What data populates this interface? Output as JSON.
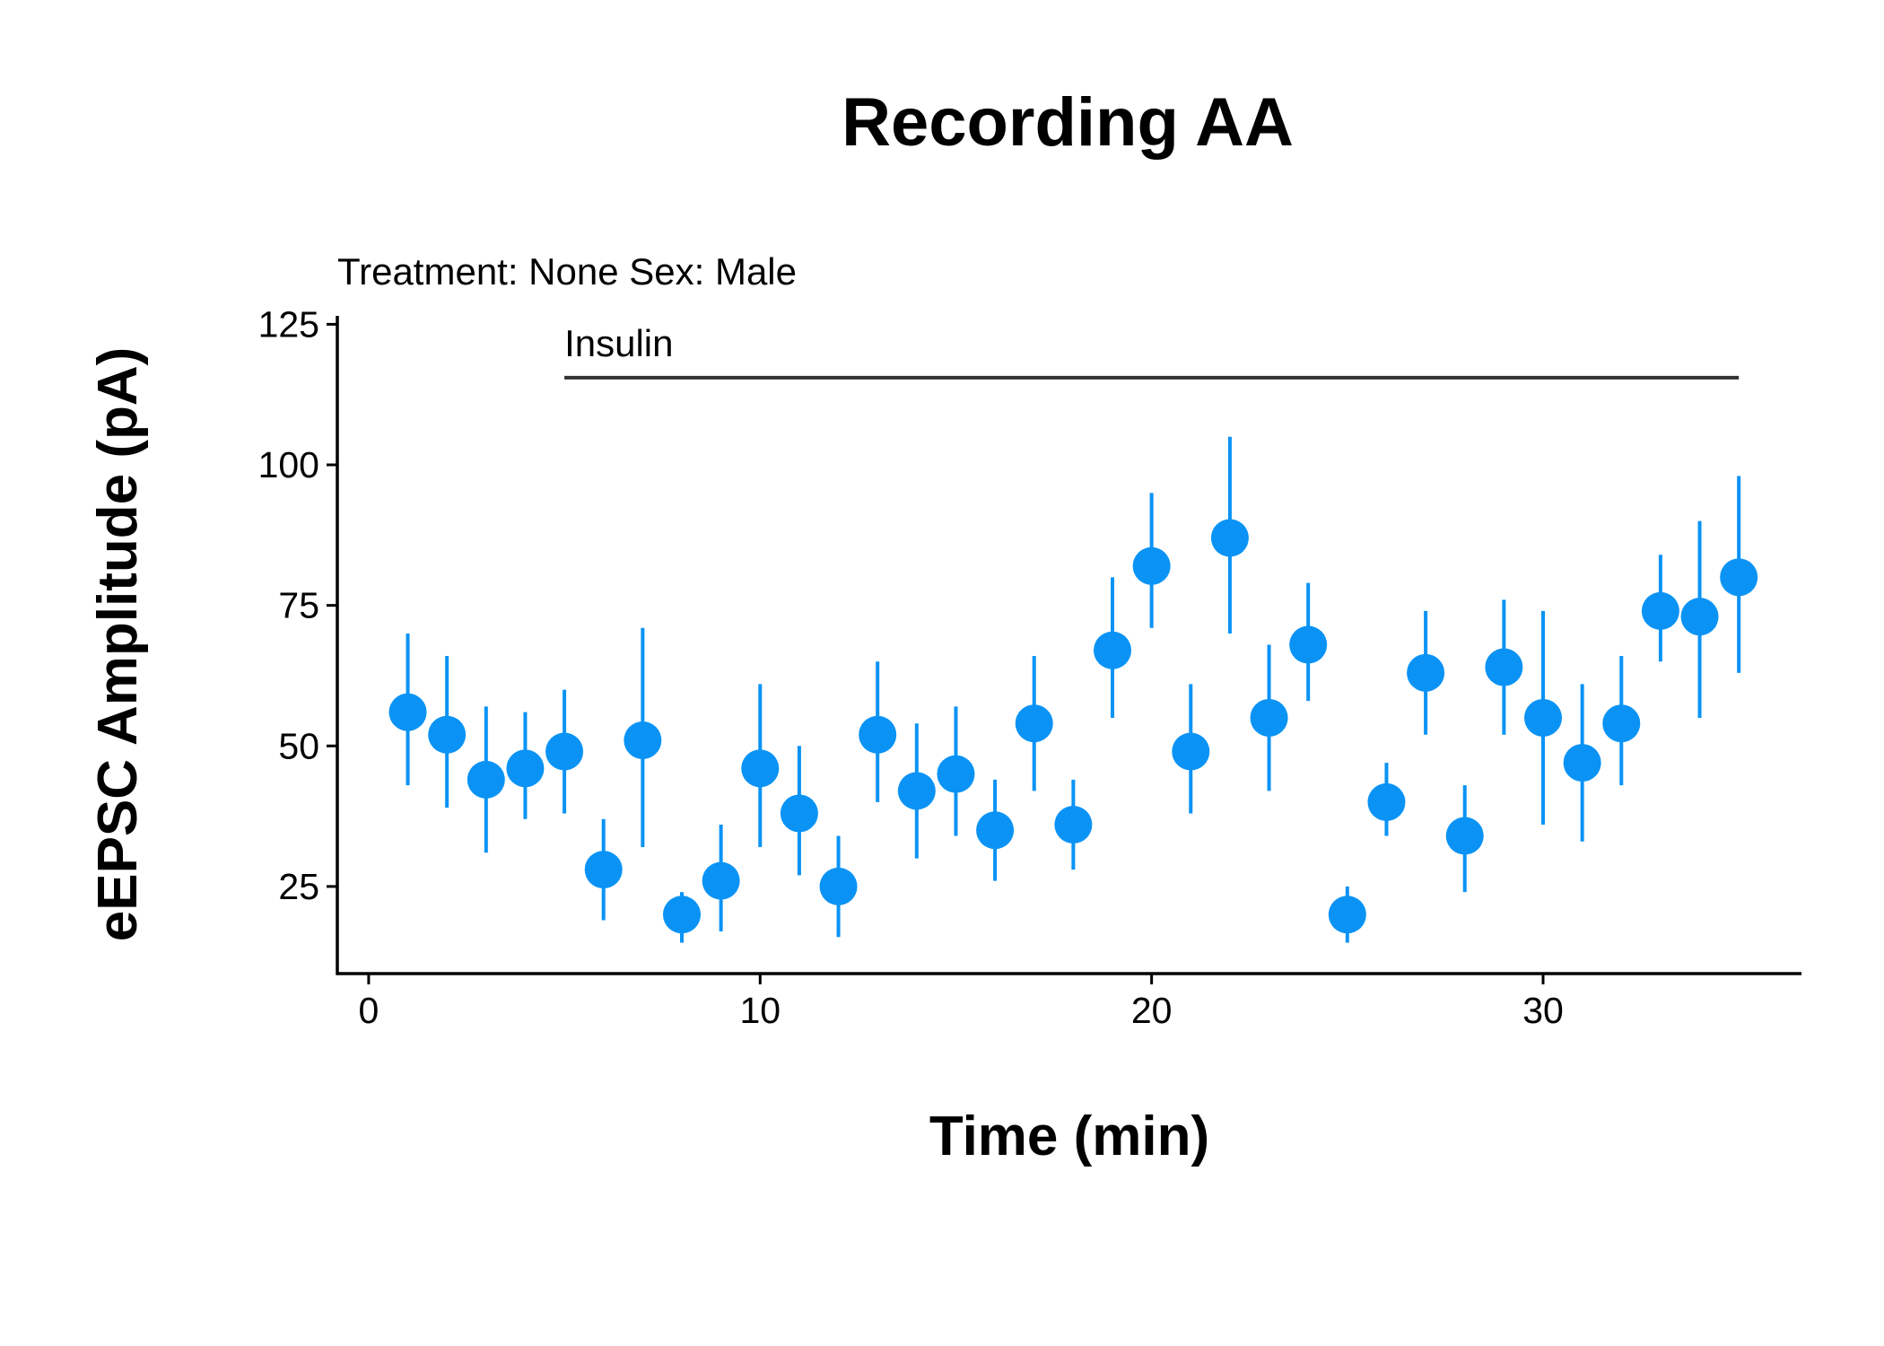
{
  "chart_data": {
    "type": "scatter",
    "title": "Recording AA",
    "subtitle": "Treatment: None  Sex: Male",
    "xlabel": "Time (min)",
    "ylabel": "eEPSC Amplitude (pA)",
    "xlim": [
      -0.8,
      36.6
    ],
    "ylim": [
      9.5,
      126.5
    ],
    "xticks": [
      0,
      10,
      20,
      30
    ],
    "yticks": [
      25,
      50,
      75,
      100,
      125
    ],
    "grid": false,
    "point_color": "#0A93F5",
    "annotation": {
      "label": "Insulin",
      "x_start": 5,
      "x_end": 35,
      "y": 115.5,
      "color": "#333333"
    },
    "series": [
      {
        "x": [
          1,
          2,
          3,
          4,
          5,
          6,
          7,
          8,
          9,
          10,
          11,
          12,
          13,
          14,
          15,
          16,
          17,
          18,
          19,
          20,
          21,
          22,
          23,
          24,
          25,
          26,
          27,
          28,
          29,
          30,
          31,
          32,
          33,
          34,
          35
        ],
        "y": [
          56,
          52,
          44,
          46,
          49,
          28,
          51,
          20,
          26,
          46,
          38,
          25,
          52,
          42,
          45,
          35,
          54,
          36,
          67,
          82,
          49,
          87,
          55,
          68,
          20,
          40,
          63,
          34,
          64,
          55,
          47,
          54,
          74,
          73,
          80
        ],
        "y_low": [
          43,
          39,
          31,
          37,
          38,
          19,
          32,
          15,
          17,
          32,
          27,
          16,
          40,
          30,
          34,
          26,
          42,
          28,
          55,
          71,
          38,
          70,
          42,
          58,
          15,
          34,
          52,
          24,
          52,
          36,
          33,
          43,
          65,
          55,
          63
        ],
        "y_high": [
          70,
          66,
          57,
          56,
          60,
          37,
          71,
          24,
          36,
          61,
          50,
          34,
          65,
          54,
          57,
          44,
          66,
          44,
          80,
          95,
          61,
          105,
          68,
          79,
          25,
          47,
          74,
          43,
          76,
          74,
          61,
          66,
          84,
          90,
          98
        ]
      }
    ]
  }
}
